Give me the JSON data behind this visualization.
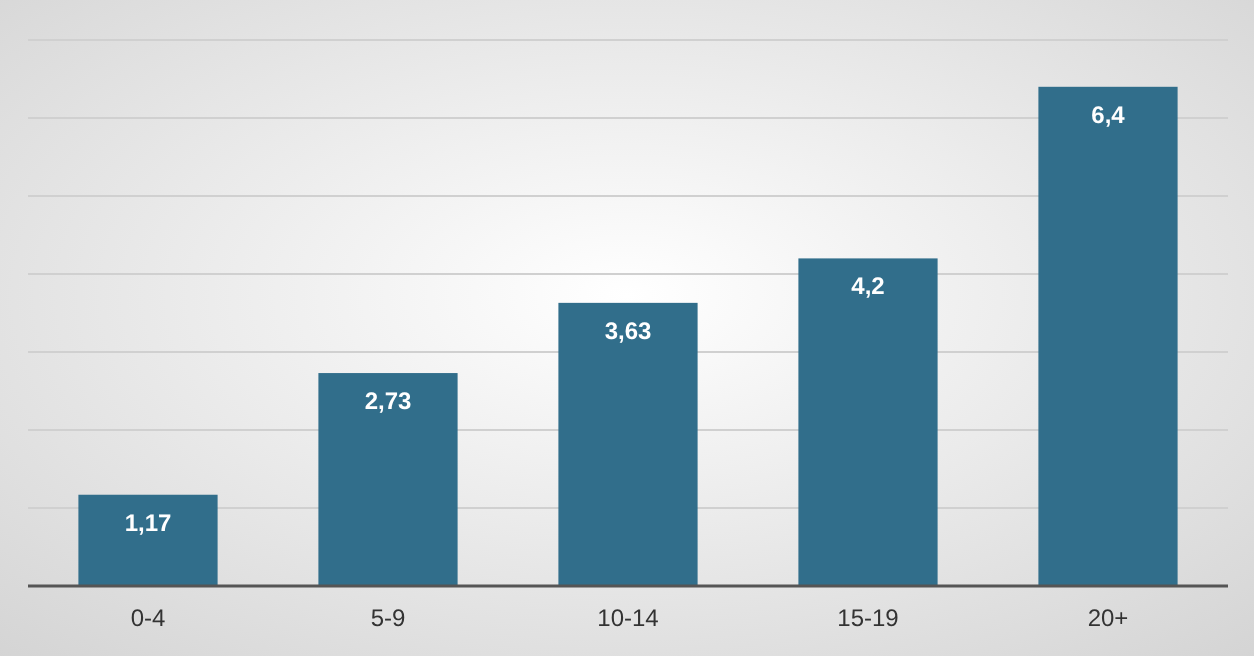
{
  "chart_data": {
    "type": "bar",
    "categories": [
      "0-4",
      "5-9",
      "10-14",
      "15-19",
      "20+"
    ],
    "values": [
      1.17,
      2.73,
      3.63,
      4.2,
      6.4
    ],
    "color": "#316e8b",
    "data_labels": true,
    "value_labels": [
      "1,17",
      "2,73",
      "3,63",
      "4,2",
      "6,4"
    ],
    "ylim": [
      0,
      7
    ],
    "yticks": [
      {
        "value": 0,
        "label": null
      },
      {
        "value": 1,
        "label": null
      },
      {
        "value": 2,
        "label": null
      },
      {
        "value": 3,
        "label": null
      },
      {
        "value": 4,
        "label": null
      },
      {
        "value": 5,
        "label": null
      },
      {
        "value": 6,
        "label": null
      },
      {
        "value": 7,
        "label": null
      }
    ],
    "grid": "y",
    "tick_labels": "x"
  }
}
